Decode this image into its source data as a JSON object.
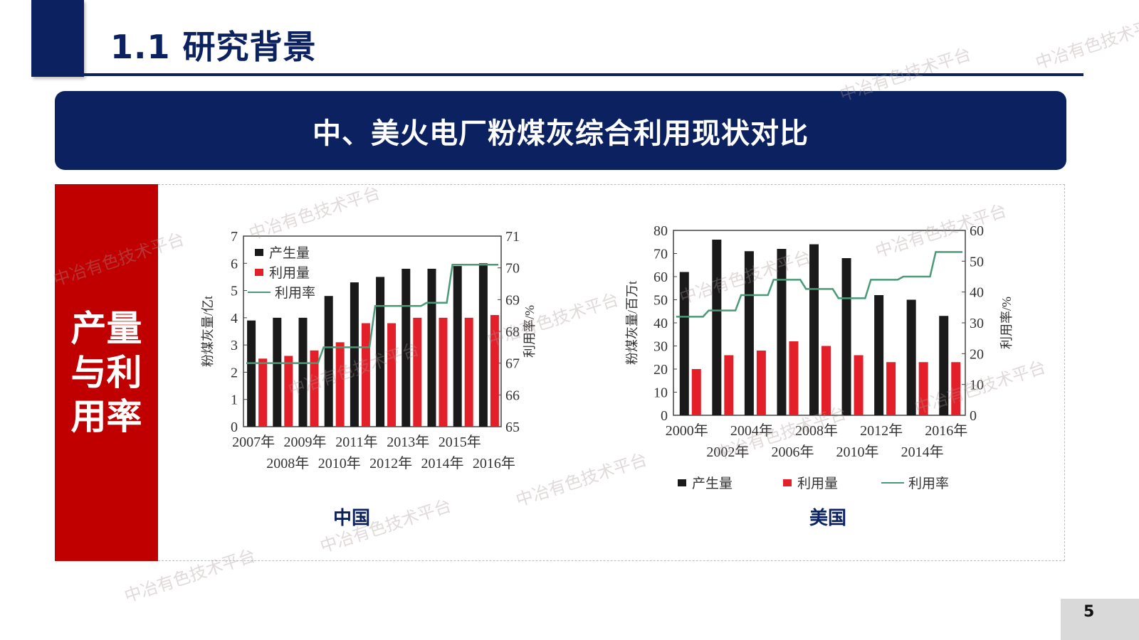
{
  "header": {
    "title": "1.1 研究背景"
  },
  "banner": {
    "title": "中、美火电厂粉煤灰综合利用现状对比"
  },
  "side_label": {
    "text": "产量与利用率"
  },
  "charts_captions": {
    "china": "中国",
    "usa": "美国"
  },
  "page": {
    "number": "5"
  },
  "watermark": {
    "text": "中冶有色技术平台"
  },
  "colors": {
    "navy": "#0c2260",
    "red_panel": "#c00000",
    "bar_black": "#1a1a1a",
    "bar_red": "#e3202a",
    "line_green": "#4a9a78"
  },
  "chart_data": [
    {
      "type": "bar",
      "title": "中国",
      "categories": [
        "2007年",
        "2008年",
        "2009年",
        "2010年",
        "2011年",
        "2012年",
        "2013年",
        "2014年",
        "2015年",
        "2016年"
      ],
      "series": [
        {
          "name": "产生量",
          "type": "bar",
          "axis": "left",
          "values": [
            3.9,
            4.0,
            4.0,
            4.8,
            5.3,
            5.5,
            5.8,
            5.8,
            5.9,
            6.0
          ]
        },
        {
          "name": "利用量",
          "type": "bar",
          "axis": "left",
          "values": [
            2.5,
            2.6,
            2.8,
            3.1,
            3.8,
            3.8,
            4.0,
            4.0,
            4.0,
            4.1
          ]
        },
        {
          "name": "利用率",
          "type": "line",
          "axis": "right",
          "values": [
            67.0,
            67.0,
            67.0,
            67.5,
            67.5,
            68.8,
            68.8,
            68.9,
            70.1,
            70.1
          ]
        }
      ],
      "ylabel": "粉煤灰量/亿t",
      "ylabel_right": "利用率/%",
      "ylim": [
        0,
        7
      ],
      "yticks": [
        0,
        1,
        2,
        3,
        4,
        5,
        6,
        7
      ],
      "ylim_right": [
        65,
        71
      ],
      "yticks_right": [
        65,
        66,
        67,
        68,
        69,
        70,
        71
      ],
      "legend": [
        "产生量",
        "利用量",
        "利用率"
      ],
      "legend_position": "upper-left"
    },
    {
      "type": "bar",
      "title": "美国",
      "categories": [
        "2000年",
        "2002年",
        "2004年",
        "2006年",
        "2008年",
        "2010年",
        "2012年",
        "2014年",
        "2016年"
      ],
      "series": [
        {
          "name": "产生量",
          "type": "bar",
          "axis": "left",
          "values": [
            62,
            76,
            71,
            72,
            74,
            68,
            52,
            50,
            43
          ]
        },
        {
          "name": "利用量",
          "type": "bar",
          "axis": "left",
          "values": [
            20,
            26,
            28,
            32,
            30,
            26,
            23,
            23,
            23
          ]
        },
        {
          "name": "利用率",
          "type": "line",
          "axis": "right",
          "values": [
            32,
            34,
            39,
            44,
            41,
            38,
            44,
            45,
            53
          ]
        }
      ],
      "ylabel": "粉煤灰量/百万t",
      "ylabel_right": "利用率/%",
      "ylim": [
        0,
        80
      ],
      "yticks": [
        0,
        10,
        20,
        30,
        40,
        50,
        60,
        70,
        80
      ],
      "ylim_right": [
        0,
        60
      ],
      "yticks_right": [
        0,
        10,
        20,
        30,
        40,
        50,
        60
      ],
      "legend": [
        "产生量",
        "利用量",
        "利用率"
      ],
      "legend_position": "bottom"
    }
  ]
}
